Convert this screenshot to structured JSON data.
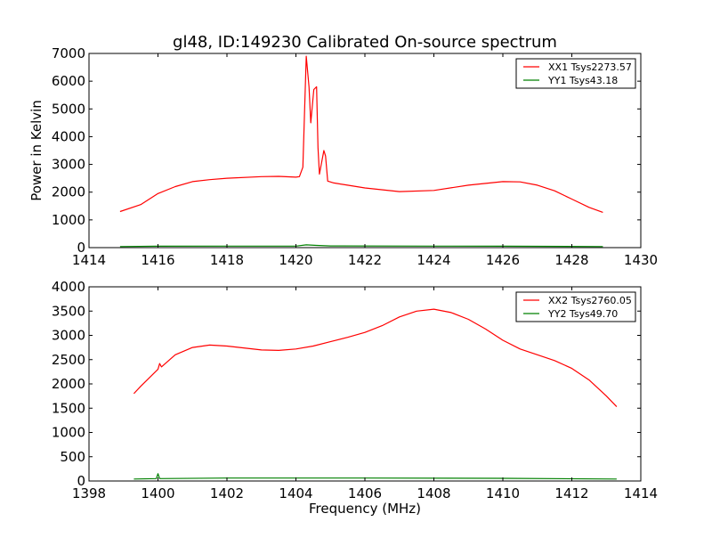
{
  "chart_data": [
    {
      "type": "line",
      "title": "gl48, ID:149230 Calibrated On-source spectrum",
      "xlabel": "",
      "ylabel": "Power in Kelvin",
      "xlim": [
        1414,
        1430
      ],
      "ylim": [
        0,
        7000
      ],
      "xticks": [
        1414,
        1416,
        1418,
        1420,
        1422,
        1424,
        1426,
        1428,
        1430
      ],
      "yticks": [
        0,
        1000,
        2000,
        3000,
        4000,
        5000,
        6000,
        7000
      ],
      "legend_placement": "top-right",
      "series": [
        {
          "name": "XX1 Tsys2273.57",
          "color": "#ff0000",
          "points": [
            [
              1414.9,
              1300
            ],
            [
              1415.5,
              1550
            ],
            [
              1416,
              1950
            ],
            [
              1416.5,
              2200
            ],
            [
              1417,
              2380
            ],
            [
              1417.5,
              2450
            ],
            [
              1418,
              2500
            ],
            [
              1419,
              2560
            ],
            [
              1419.5,
              2570
            ],
            [
              1420,
              2540
            ],
            [
              1420.1,
              2560
            ],
            [
              1420.2,
              2900
            ],
            [
              1420.3,
              6900
            ],
            [
              1420.38,
              5800
            ],
            [
              1420.43,
              4500
            ],
            [
              1420.52,
              5700
            ],
            [
              1420.6,
              5800
            ],
            [
              1420.64,
              3600
            ],
            [
              1420.68,
              2650
            ],
            [
              1420.81,
              3500
            ],
            [
              1420.86,
              3300
            ],
            [
              1420.92,
              2400
            ],
            [
              1421.1,
              2330
            ],
            [
              1421.5,
              2250
            ],
            [
              1422,
              2150
            ],
            [
              1423,
              2020
            ],
            [
              1424,
              2060
            ],
            [
              1425,
              2250
            ],
            [
              1426,
              2380
            ],
            [
              1426.5,
              2370
            ],
            [
              1427,
              2250
            ],
            [
              1427.5,
              2050
            ],
            [
              1428,
              1750
            ],
            [
              1428.5,
              1450
            ],
            [
              1428.9,
              1270
            ]
          ]
        },
        {
          "name": "YY1 Tsys43.18",
          "color": "#008000",
          "points": [
            [
              1414.9,
              40
            ],
            [
              1416,
              50
            ],
            [
              1418,
              55
            ],
            [
              1420,
              55
            ],
            [
              1420.3,
              100
            ],
            [
              1420.6,
              80
            ],
            [
              1421,
              60
            ],
            [
              1424,
              55
            ],
            [
              1426,
              50
            ],
            [
              1428.9,
              40
            ]
          ]
        }
      ]
    },
    {
      "type": "line",
      "title": "",
      "xlabel": "Frequency (MHz)",
      "ylabel": "",
      "xlim": [
        1398,
        1414
      ],
      "ylim": [
        0,
        4000
      ],
      "xticks": [
        1398,
        1400,
        1402,
        1404,
        1406,
        1408,
        1410,
        1412,
        1414
      ],
      "yticks": [
        0,
        500,
        1000,
        1500,
        2000,
        2500,
        3000,
        3500,
        4000
      ],
      "legend_placement": "top-right",
      "series": [
        {
          "name": "XX2 Tsys2760.05",
          "color": "#ff0000",
          "points": [
            [
              1399.3,
              1800
            ],
            [
              1399.5,
              1950
            ],
            [
              1400,
              2300
            ],
            [
              1400.05,
              2420
            ],
            [
              1400.1,
              2350
            ],
            [
              1400.5,
              2600
            ],
            [
              1401,
              2750
            ],
            [
              1401.5,
              2800
            ],
            [
              1402,
              2780
            ],
            [
              1403,
              2700
            ],
            [
              1403.5,
              2690
            ],
            [
              1404,
              2720
            ],
            [
              1404.5,
              2780
            ],
            [
              1405,
              2870
            ],
            [
              1405.5,
              2960
            ],
            [
              1406,
              3060
            ],
            [
              1406.5,
              3200
            ],
            [
              1407,
              3380
            ],
            [
              1407.5,
              3500
            ],
            [
              1408,
              3540
            ],
            [
              1408.5,
              3470
            ],
            [
              1409,
              3330
            ],
            [
              1409.5,
              3130
            ],
            [
              1410,
              2900
            ],
            [
              1410.5,
              2720
            ],
            [
              1411,
              2600
            ],
            [
              1411.5,
              2480
            ],
            [
              1412,
              2320
            ],
            [
              1412.5,
              2080
            ],
            [
              1413,
              1750
            ],
            [
              1413.3,
              1530
            ]
          ]
        },
        {
          "name": "YY2 Tsys49.70",
          "color": "#008000",
          "points": [
            [
              1399.3,
              40
            ],
            [
              1399.95,
              50
            ],
            [
              1400,
              150
            ],
            [
              1400.05,
              50
            ],
            [
              1402,
              60
            ],
            [
              1406,
              60
            ],
            [
              1410,
              55
            ],
            [
              1413.3,
              40
            ]
          ]
        }
      ]
    }
  ]
}
